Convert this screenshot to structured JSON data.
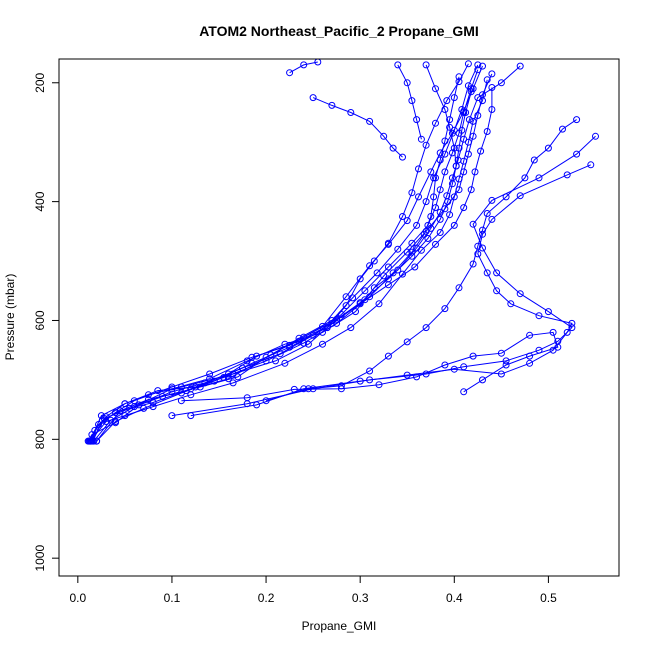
{
  "chart_data": {
    "type": "scatter",
    "title": "ATOM2 Northeast_Pacific_2 Propane_GMI",
    "xlabel": "Propane_GMI",
    "ylabel": "Pressure (mbar)",
    "xlim": [
      -0.02,
      0.575
    ],
    "ylim": [
      160,
      1030
    ],
    "y_reversed": true,
    "x_ticks": [
      {
        "value": 0.0,
        "label": "0.0"
      },
      {
        "value": 0.1,
        "label": "0.1"
      },
      {
        "value": 0.2,
        "label": "0.2"
      },
      {
        "value": 0.3,
        "label": "0.3"
      },
      {
        "value": 0.4,
        "label": "0.4"
      },
      {
        "value": 0.5,
        "label": "0.5"
      }
    ],
    "y_ticks": [
      {
        "value": 200,
        "label": "200"
      },
      {
        "value": 400,
        "label": "400"
      },
      {
        "value": 600,
        "label": "600"
      },
      {
        "value": 800,
        "label": "800"
      },
      {
        "value": 1000,
        "label": "1000"
      }
    ],
    "color": "#0000ff",
    "series": [
      {
        "points": [
          [
            0.012,
            803
          ],
          [
            0.018,
            785
          ],
          [
            0.03,
            762
          ],
          [
            0.05,
            740
          ],
          [
            0.075,
            725
          ],
          [
            0.11,
            712
          ],
          [
            0.165,
            690
          ],
          [
            0.21,
            668
          ],
          [
            0.245,
            640
          ],
          [
            0.265,
            612
          ],
          [
            0.285,
            575
          ],
          [
            0.3,
            530
          ],
          [
            0.315,
            500
          ],
          [
            0.33,
            470
          ],
          [
            0.345,
            425
          ],
          [
            0.355,
            385
          ],
          [
            0.362,
            345
          ],
          [
            0.37,
            305
          ],
          [
            0.38,
            268
          ],
          [
            0.392,
            230
          ],
          [
            0.405,
            198
          ],
          [
            0.415,
            168
          ]
        ]
      },
      {
        "points": [
          [
            0.014,
            803
          ],
          [
            0.022,
            775
          ],
          [
            0.04,
            755
          ],
          [
            0.06,
            735
          ],
          [
            0.1,
            712
          ],
          [
            0.14,
            690
          ],
          [
            0.185,
            662
          ],
          [
            0.225,
            642
          ],
          [
            0.26,
            610
          ],
          [
            0.285,
            560
          ],
          [
            0.31,
            508
          ],
          [
            0.33,
            472
          ],
          [
            0.35,
            432
          ],
          [
            0.362,
            392
          ],
          [
            0.375,
            350
          ],
          [
            0.385,
            318
          ],
          [
            0.398,
            285
          ],
          [
            0.41,
            248
          ],
          [
            0.42,
            210
          ],
          [
            0.43,
            172
          ]
        ]
      },
      {
        "points": [
          [
            0.016,
            803
          ],
          [
            0.026,
            768
          ],
          [
            0.045,
            752
          ],
          [
            0.075,
            733
          ],
          [
            0.115,
            718
          ],
          [
            0.16,
            698
          ],
          [
            0.205,
            658
          ],
          [
            0.235,
            630
          ],
          [
            0.27,
            600
          ],
          [
            0.292,
            562
          ],
          [
            0.318,
            520
          ],
          [
            0.34,
            480
          ],
          [
            0.36,
            440
          ],
          [
            0.37,
            400
          ],
          [
            0.378,
            360
          ],
          [
            0.39,
            320
          ],
          [
            0.4,
            280
          ],
          [
            0.408,
            245
          ],
          [
            0.415,
            205
          ],
          [
            0.425,
            170
          ]
        ]
      },
      {
        "points": [
          [
            0.013,
            803
          ],
          [
            0.03,
            770
          ],
          [
            0.05,
            760
          ],
          [
            0.08,
            745
          ],
          [
            0.12,
            725
          ],
          [
            0.165,
            705
          ],
          [
            0.22,
            672
          ],
          [
            0.26,
            640
          ],
          [
            0.29,
            612
          ],
          [
            0.32,
            572
          ],
          [
            0.345,
            522
          ],
          [
            0.365,
            482
          ],
          [
            0.385,
            452
          ],
          [
            0.395,
            422
          ],
          [
            0.4,
            392
          ],
          [
            0.405,
            362
          ],
          [
            0.41,
            332
          ],
          [
            0.415,
            300
          ],
          [
            0.42,
            265
          ],
          [
            0.43,
            230
          ],
          [
            0.435,
            195
          ]
        ]
      },
      {
        "points": [
          [
            0.02,
            803
          ],
          [
            0.04,
            770
          ],
          [
            0.07,
            748
          ],
          [
            0.11,
            722
          ],
          [
            0.145,
            702
          ],
          [
            0.185,
            672
          ],
          [
            0.225,
            645
          ],
          [
            0.265,
            612
          ],
          [
            0.3,
            570
          ],
          [
            0.33,
            530
          ],
          [
            0.355,
            492
          ],
          [
            0.372,
            462
          ],
          [
            0.385,
            430
          ],
          [
            0.393,
            400
          ],
          [
            0.398,
            370
          ],
          [
            0.402,
            340
          ],
          [
            0.405,
            310
          ],
          [
            0.408,
            280
          ],
          [
            0.412,
            250
          ],
          [
            0.418,
            215
          ]
        ]
      },
      {
        "points": [
          [
            0.015,
            803
          ],
          [
            0.028,
            765
          ],
          [
            0.055,
            748
          ],
          [
            0.09,
            728
          ],
          [
            0.13,
            712
          ],
          [
            0.17,
            695
          ],
          [
            0.2,
            662
          ],
          [
            0.24,
            628
          ],
          [
            0.275,
            598
          ],
          [
            0.305,
            565
          ],
          [
            0.325,
            525
          ],
          [
            0.35,
            485
          ],
          [
            0.37,
            450
          ],
          [
            0.39,
            412
          ],
          [
            0.405,
            380
          ],
          [
            0.41,
            350
          ],
          [
            0.415,
            320
          ],
          [
            0.42,
            290
          ],
          [
            0.425,
            255
          ],
          [
            0.43,
            220
          ],
          [
            0.44,
            185
          ]
        ]
      },
      {
        "points": [
          [
            0.011,
            803
          ],
          [
            0.015,
            792
          ],
          [
            0.04,
            772
          ],
          [
            0.065,
            742
          ],
          [
            0.1,
            720
          ],
          [
            0.135,
            705
          ],
          [
            0.175,
            680
          ],
          [
            0.215,
            656
          ],
          [
            0.25,
            625
          ],
          [
            0.28,
            590
          ],
          [
            0.305,
            550
          ],
          [
            0.33,
            510
          ],
          [
            0.355,
            470
          ],
          [
            0.372,
            440
          ],
          [
            0.38,
            410
          ],
          [
            0.385,
            380
          ],
          [
            0.39,
            350
          ],
          [
            0.398,
            318
          ],
          [
            0.405,
            285
          ],
          [
            0.41,
            250
          ],
          [
            0.418,
            210
          ],
          [
            0.425,
            178
          ]
        ]
      },
      {
        "points": [
          [
            0.017,
            803
          ],
          [
            0.035,
            768
          ],
          [
            0.06,
            745
          ],
          [
            0.1,
            715
          ],
          [
            0.14,
            698
          ],
          [
            0.18,
            668
          ],
          [
            0.22,
            640
          ],
          [
            0.26,
            620
          ],
          [
            0.295,
            585
          ],
          [
            0.315,
            545
          ],
          [
            0.34,
            515
          ],
          [
            0.36,
            478
          ],
          [
            0.375,
            445
          ],
          [
            0.385,
            418
          ],
          [
            0.392,
            390
          ],
          [
            0.398,
            360
          ],
          [
            0.404,
            330
          ],
          [
            0.41,
            295
          ],
          [
            0.416,
            262
          ],
          [
            0.425,
            225
          ],
          [
            0.45,
            200
          ],
          [
            0.47,
            172
          ]
        ]
      },
      {
        "points": [
          [
            0.013,
            803
          ],
          [
            0.025,
            760
          ],
          [
            0.05,
            740
          ],
          [
            0.085,
            718
          ],
          [
            0.125,
            712
          ],
          [
            0.16,
            690
          ],
          [
            0.19,
            660
          ],
          [
            0.235,
            635
          ],
          [
            0.27,
            605
          ],
          [
            0.3,
            572
          ],
          [
            0.33,
            540
          ],
          [
            0.358,
            510
          ],
          [
            0.38,
            472
          ],
          [
            0.4,
            440
          ],
          [
            0.41,
            410
          ],
          [
            0.418,
            380
          ],
          [
            0.422,
            350
          ],
          [
            0.428,
            315
          ],
          [
            0.435,
            282
          ],
          [
            0.44,
            245
          ],
          [
            0.44,
            208
          ]
        ]
      },
      {
        "points": [
          [
            0.02,
            803
          ],
          [
            0.045,
            752
          ],
          [
            0.08,
            738
          ],
          [
            0.12,
            715
          ],
          [
            0.155,
            696
          ],
          [
            0.2,
            668
          ],
          [
            0.24,
            638
          ],
          [
            0.275,
            605
          ],
          [
            0.31,
            560
          ],
          [
            0.335,
            520
          ],
          [
            0.355,
            485
          ],
          [
            0.368,
            455
          ],
          [
            0.375,
            425
          ],
          [
            0.378,
            392
          ],
          [
            0.38,
            360
          ],
          [
            0.385,
            330
          ],
          [
            0.39,
            298
          ],
          [
            0.395,
            262
          ],
          [
            0.4,
            225
          ],
          [
            0.405,
            190
          ]
        ]
      },
      {
        "points": [
          [
            0.1,
            760
          ],
          [
            0.18,
            740
          ],
          [
            0.25,
            715
          ],
          [
            0.31,
            700
          ],
          [
            0.37,
            690
          ],
          [
            0.41,
            678
          ],
          [
            0.455,
            668
          ],
          [
            0.49,
            650
          ],
          [
            0.51,
            635
          ],
          [
            0.525,
            612
          ],
          [
            0.5,
            585
          ],
          [
            0.47,
            555
          ],
          [
            0.445,
            520
          ],
          [
            0.43,
            478
          ],
          [
            0.42,
            438
          ],
          [
            0.44,
            398
          ],
          [
            0.49,
            360
          ],
          [
            0.53,
            320
          ],
          [
            0.55,
            290
          ]
        ]
      },
      {
        "points": [
          [
            0.12,
            760
          ],
          [
            0.19,
            742
          ],
          [
            0.24,
            715
          ],
          [
            0.3,
            702
          ],
          [
            0.35,
            692
          ],
          [
            0.4,
            682
          ],
          [
            0.45,
            690
          ],
          [
            0.48,
            672
          ],
          [
            0.505,
            650
          ],
          [
            0.52,
            620
          ],
          [
            0.525,
            605
          ],
          [
            0.49,
            592
          ],
          [
            0.46,
            572
          ],
          [
            0.445,
            550
          ],
          [
            0.435,
            520
          ],
          [
            0.425,
            488
          ],
          [
            0.43,
            455
          ],
          [
            0.44,
            430
          ],
          [
            0.47,
            390
          ],
          [
            0.52,
            355
          ],
          [
            0.545,
            338
          ]
        ]
      },
      {
        "points": [
          [
            0.11,
            735
          ],
          [
            0.18,
            730
          ],
          [
            0.23,
            716
          ],
          [
            0.28,
            715
          ],
          [
            0.32,
            708
          ],
          [
            0.36,
            695
          ],
          [
            0.39,
            675
          ],
          [
            0.42,
            660
          ],
          [
            0.45,
            655
          ],
          [
            0.48,
            625
          ],
          [
            0.505,
            620
          ],
          [
            0.51,
            645
          ],
          [
            0.48,
            660
          ],
          [
            0.455,
            675
          ],
          [
            0.43,
            700
          ],
          [
            0.41,
            720
          ]
        ]
      },
      {
        "points": [
          [
            0.2,
            735
          ],
          [
            0.245,
            715
          ],
          [
            0.28,
            710
          ],
          [
            0.31,
            685
          ],
          [
            0.33,
            660
          ],
          [
            0.35,
            636
          ],
          [
            0.37,
            612
          ],
          [
            0.39,
            580
          ],
          [
            0.405,
            545
          ],
          [
            0.42,
            505
          ],
          [
            0.425,
            475
          ],
          [
            0.43,
            448
          ],
          [
            0.435,
            420
          ],
          [
            0.455,
            392
          ],
          [
            0.475,
            360
          ],
          [
            0.485,
            330
          ],
          [
            0.5,
            310
          ],
          [
            0.515,
            278
          ],
          [
            0.53,
            262
          ]
        ]
      },
      {
        "points": [
          [
            0.225,
            183
          ],
          [
            0.24,
            170
          ],
          [
            0.255,
            165
          ]
        ]
      },
      {
        "points": [
          [
            0.25,
            225
          ],
          [
            0.27,
            238
          ],
          [
            0.29,
            250
          ],
          [
            0.31,
            265
          ],
          [
            0.325,
            290
          ],
          [
            0.335,
            310
          ],
          [
            0.345,
            325
          ]
        ]
      },
      {
        "points": [
          [
            0.34,
            170
          ],
          [
            0.35,
            200
          ],
          [
            0.355,
            230
          ],
          [
            0.36,
            262
          ],
          [
            0.365,
            295
          ]
        ]
      },
      {
        "points": [
          [
            0.37,
            170
          ],
          [
            0.38,
            210
          ],
          [
            0.39,
            245
          ],
          [
            0.395,
            275
          ],
          [
            0.4,
            310
          ],
          [
            0.402,
            340
          ]
        ]
      }
    ]
  }
}
